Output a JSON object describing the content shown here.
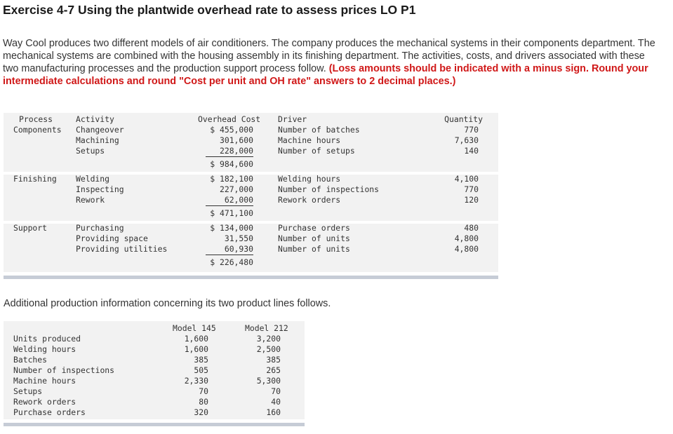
{
  "title": "Exercise 4-7 Using the plantwide overhead rate to assess prices LO P1",
  "intro": {
    "text": "Way Cool produces two different models of air conditioners. The company produces the mechanical systems in their components department. The mechanical systems are combined with the housing assembly in its finishing department. The activities, costs, and drivers associated with these two manufacturing processes and the production support process follow.",
    "warning": "(Loss amounts should be indicated with a minus sign. Round your intermediate calculations and round \"Cost per unit and OH rate\" answers to 2 decimal places.)"
  },
  "table1": {
    "headers": {
      "process": "Process",
      "activity": "Activity",
      "overhead_cost": "Overhead Cost",
      "driver": "Driver",
      "quantity": "Quantity"
    },
    "groups": [
      {
        "process": "Components",
        "rows": [
          {
            "activity": "Changeover",
            "cost": "$ 455,000",
            "driver": "Number of batches",
            "quantity": "770"
          },
          {
            "activity": "Machining",
            "cost": "301,600",
            "driver": "Machine hours",
            "quantity": "7,630"
          },
          {
            "activity": "Setups",
            "cost": "228,000",
            "driver": "Number of setups",
            "quantity": "140"
          }
        ],
        "total": "$ 984,600"
      },
      {
        "process": "Finishing",
        "rows": [
          {
            "activity": "Welding",
            "cost": "$ 182,100",
            "driver": "Welding hours",
            "quantity": "4,100"
          },
          {
            "activity": "Inspecting",
            "cost": "227,000",
            "driver": "Number of inspections",
            "quantity": "770"
          },
          {
            "activity": "Rework",
            "cost": "62,000",
            "driver": "Rework orders",
            "quantity": "120"
          }
        ],
        "total": "$ 471,100"
      },
      {
        "process": "Support",
        "rows": [
          {
            "activity": "Purchasing",
            "cost": "$ 134,000",
            "driver": "Purchase orders",
            "quantity": "480"
          },
          {
            "activity": "Providing space",
            "cost": "31,550",
            "driver": "Number of units",
            "quantity": "4,800"
          },
          {
            "activity": "Providing utilities",
            "cost": "60,930",
            "driver": "Number of units",
            "quantity": "4,800"
          }
        ],
        "total": "$ 226,480"
      }
    ]
  },
  "para2": "Additional production information concerning its two product lines follows.",
  "table2": {
    "headers": {
      "col1": "Model 145",
      "col2": "Model 212"
    },
    "rows": [
      {
        "label": "Units produced",
        "m145": "1,600",
        "m212": "3,200"
      },
      {
        "label": "Welding hours",
        "m145": "1,600",
        "m212": "2,500"
      },
      {
        "label": "Batches",
        "m145": "385",
        "m212": "385"
      },
      {
        "label": "Number of inspections",
        "m145": "505",
        "m212": "265"
      },
      {
        "label": "Machine hours",
        "m145": "2,330",
        "m212": "5,300"
      },
      {
        "label": "Setups",
        "m145": "70",
        "m212": "70"
      },
      {
        "label": "Rework orders",
        "m145": "80",
        "m212": "40"
      },
      {
        "label": "Purchase orders",
        "m145": "320",
        "m212": "160"
      }
    ]
  }
}
